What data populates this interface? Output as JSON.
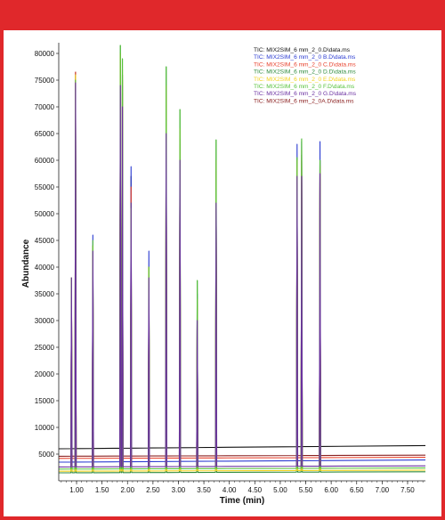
{
  "chart_data": {
    "type": "line",
    "title": "",
    "xlabel": "Time (min)",
    "ylabel": "Abundance",
    "xlim": [
      0.65,
      7.85
    ],
    "ylim": [
      0,
      82000
    ],
    "x_ticks": [
      1.0,
      1.5,
      2.0,
      2.5,
      3.0,
      3.5,
      4.0,
      4.5,
      5.0,
      5.5,
      6.0,
      6.5,
      7.0,
      7.5
    ],
    "x_tick_labels": [
      "1.00",
      "1.50",
      "2.00",
      "2.50",
      "3.00",
      "3.50",
      "4.00",
      "4.50",
      "5.00",
      "5.50",
      "6.00",
      "6.50",
      "7.00",
      "7.50"
    ],
    "y_ticks": [
      5000,
      10000,
      15000,
      20000,
      25000,
      30000,
      35000,
      40000,
      45000,
      50000,
      55000,
      60000,
      65000,
      70000,
      75000,
      80000
    ],
    "y_tick_labels": [
      "5000",
      "10000",
      "15000",
      "20000",
      "25000",
      "30000",
      "35000",
      "40000",
      "45000",
      "50000",
      "55000",
      "60000",
      "65000",
      "70000",
      "75000",
      "80000"
    ],
    "grid": false,
    "legend_position": "top-right",
    "series": [
      {
        "name": "TIC: MIX2SIM_6 mm_2_0.D\\data.ms",
        "color": "#111111",
        "baseline_start": 6000,
        "baseline_end": 6600
      },
      {
        "name": "TIC: MIX2SIM_6 mm_2_0 B.D\\data.ms",
        "color": "#2b3bd1",
        "baseline_start": 3500,
        "baseline_end": 3900
      },
      {
        "name": "TIC: MIX2SIM_6 mm_2_0 C.D\\data.ms",
        "color": "#e8412c",
        "baseline_start": 4200,
        "baseline_end": 4400
      },
      {
        "name": "TIC: MIX2SIM_6 mm_2_0 D.D\\data.ms",
        "color": "#2e8b3c",
        "baseline_start": 1500,
        "baseline_end": 1700
      },
      {
        "name": "TIC: MIX2SIM_6 mm_2_0 E.D\\data.ms",
        "color": "#f2d21b",
        "baseline_start": 1800,
        "baseline_end": 2000
      },
      {
        "name": "TIC: MIX2SIM_6 mm_2_0 F.D\\data.ms",
        "color": "#56c23b",
        "baseline_start": 2200,
        "baseline_end": 2400
      },
      {
        "name": "TIC: MIX2SIM_6 mm_2_0 G.D\\data.ms",
        "color": "#6a2fa0",
        "baseline_start": 2600,
        "baseline_end": 2800
      },
      {
        "name": "TIC: MIX2SIM_6 mm_2_0A.D\\data.ms",
        "color": "#8b2020",
        "baseline_start": 4600,
        "baseline_end": 4800
      }
    ],
    "peaks": [
      {
        "rt": 0.9,
        "heights": [
          10000,
          38000,
          38000,
          38000,
          38000,
          38000,
          38000,
          38000
        ]
      },
      {
        "rt": 0.98,
        "heights": [
          76500,
          75000,
          76500,
          74000,
          76000,
          75000,
          74500,
          61000
        ]
      },
      {
        "rt": 1.32,
        "heights": [
          44000,
          46000,
          42000,
          44000,
          44000,
          45000,
          43000,
          40000
        ]
      },
      {
        "rt": 1.86,
        "heights": [
          80000,
          77000,
          78000,
          81500,
          80000,
          81500,
          74000,
          69000
        ]
      },
      {
        "rt": 1.9,
        "heights": [
          76000,
          74000,
          75000,
          79000,
          77000,
          79000,
          70000,
          60500
        ]
      },
      {
        "rt": 2.07,
        "heights": [
          57000,
          58800,
          55000,
          52000,
          51000,
          51000,
          52000,
          46000
        ]
      },
      {
        "rt": 2.42,
        "heights": [
          40000,
          43000,
          40000,
          40000,
          40000,
          40000,
          38000,
          35500
        ]
      },
      {
        "rt": 2.76,
        "heights": [
          72000,
          74000,
          72000,
          77500,
          74000,
          77500,
          65000,
          60500
        ]
      },
      {
        "rt": 3.03,
        "heights": [
          63000,
          64000,
          62000,
          69500,
          66000,
          69500,
          60000,
          53500
        ]
      },
      {
        "rt": 3.37,
        "heights": [
          33000,
          35000,
          33000,
          37500,
          34000,
          37500,
          30000,
          28000
        ]
      },
      {
        "rt": 3.74,
        "heights": [
          58000,
          60000,
          58000,
          63800,
          60000,
          63800,
          52000,
          49500
        ]
      },
      {
        "rt": 5.33,
        "heights": [
          60000,
          63000,
          59000,
          60500,
          60000,
          60500,
          57000,
          55000
        ]
      },
      {
        "rt": 5.42,
        "heights": [
          61000,
          63500,
          60000,
          64000,
          62000,
          64000,
          57000,
          56000
        ]
      },
      {
        "rt": 5.78,
        "heights": [
          60000,
          63500,
          59000,
          60000,
          59000,
          60000,
          57500,
          56500
        ]
      }
    ]
  }
}
